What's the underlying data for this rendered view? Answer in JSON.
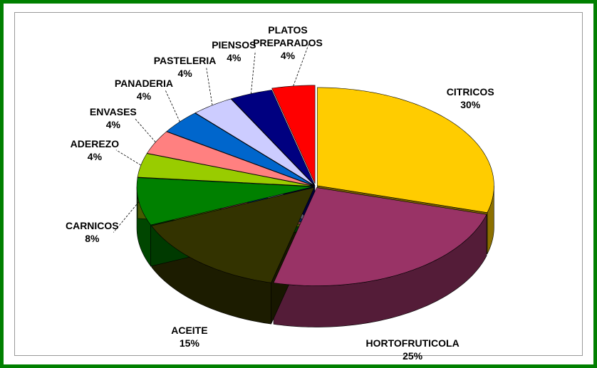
{
  "chart_data": {
    "type": "pie",
    "categories": [
      "CITRICOS",
      "HORTOFRUTICOLA",
      "ACEITE",
      "CARNICOS",
      "ADEREZO",
      "ENVASES",
      "PANADERIA",
      "PASTELERIA",
      "PIENSOS",
      "PLATOS PREPARADOS"
    ],
    "values": [
      30,
      25,
      15,
      8,
      4,
      4,
      4,
      4,
      4,
      4
    ],
    "value_labels": [
      "30%",
      "25%",
      "15%",
      "8%",
      "4%",
      "4%",
      "4%",
      "4%",
      "4%",
      "4%"
    ],
    "colors": [
      "#FFCC00",
      "#993366",
      "#333300",
      "#008000",
      "#99CC00",
      "#FF8080",
      "#0066CC",
      "#CCCCFF",
      "#000080",
      "#FF0000"
    ]
  }
}
